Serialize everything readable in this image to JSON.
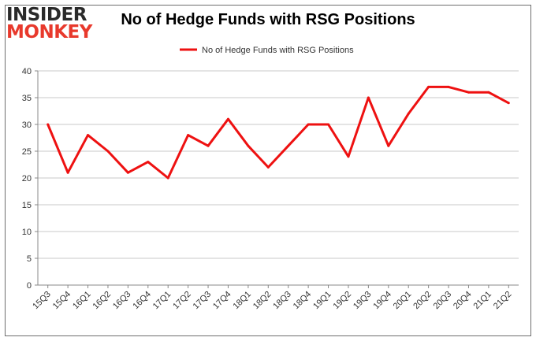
{
  "logo": {
    "line1": "INSIDER",
    "line2": "MONKEY"
  },
  "chart_data": {
    "type": "line",
    "title": "No of Hedge Funds with RSG Positions",
    "xlabel": "",
    "ylabel": "",
    "categories": [
      "15Q3",
      "15Q4",
      "16Q1",
      "16Q2",
      "16Q3",
      "16Q4",
      "17Q1",
      "17Q2",
      "17Q3",
      "17Q4",
      "18Q1",
      "18Q2",
      "18Q3",
      "18Q4",
      "19Q1",
      "19Q2",
      "19Q3",
      "19Q4",
      "20Q1",
      "20Q2",
      "20Q3",
      "20Q4",
      "21Q1",
      "21Q2"
    ],
    "series": [
      {
        "name": "No of Hedge Funds with RSG Positions",
        "color": "#ee1111",
        "values": [
          30,
          21,
          28,
          25,
          21,
          23,
          20,
          28,
          26,
          31,
          26,
          22,
          26,
          30,
          30,
          24,
          35,
          26,
          32,
          37,
          37,
          36,
          36,
          34
        ]
      }
    ],
    "ylim": [
      0,
      40
    ],
    "yticks": [
      0,
      5,
      10,
      15,
      20,
      25,
      30,
      35,
      40
    ],
    "grid": true,
    "legend": "top-center"
  }
}
